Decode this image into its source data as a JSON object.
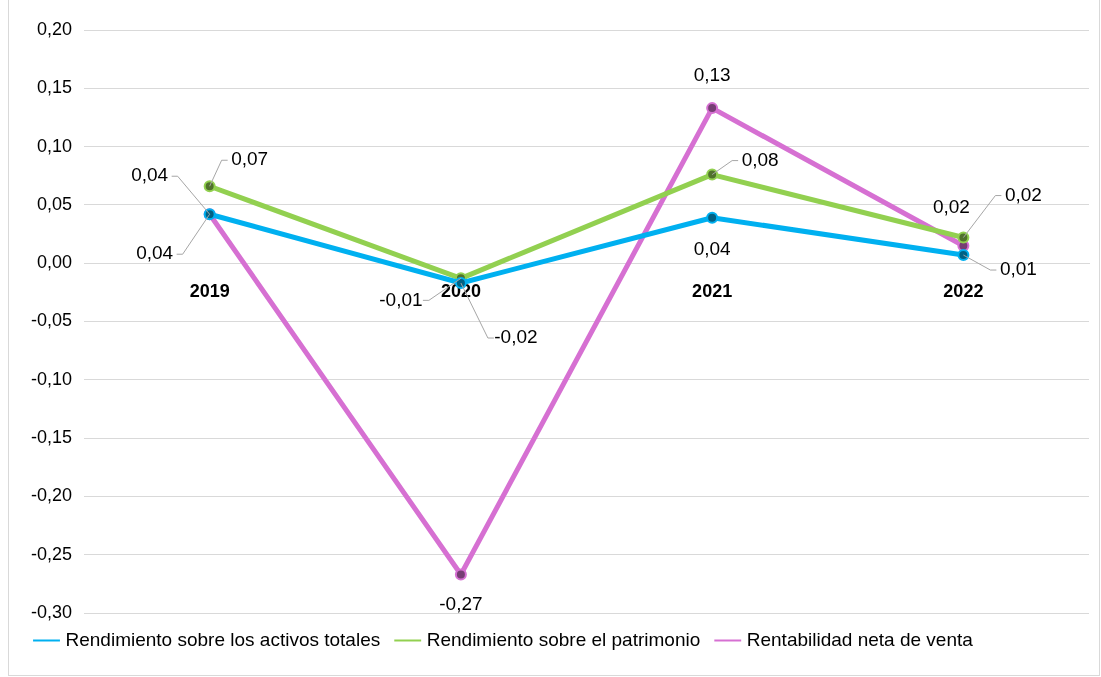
{
  "chart_data": {
    "type": "line",
    "categories": [
      "2019",
      "2020",
      "2021",
      "2022"
    ],
    "series": [
      {
        "name": "Rendimiento sobre los activos totales",
        "color": "#00b0f0",
        "values": [
          0.042,
          -0.017,
          0.039,
          0.007
        ],
        "value_labels": [
          "0,04",
          "-0,02",
          "0,04",
          "0,01"
        ]
      },
      {
        "name": "Rendimiento sobre el patrimonio",
        "color": "#92d050",
        "values": [
          0.066,
          -0.013,
          0.076,
          0.022
        ],
        "value_labels": [
          "0,07",
          "-0,01",
          "0,08",
          "0,02"
        ]
      },
      {
        "name": "Rentabilidad neta de venta",
        "color": "#d670d2",
        "values": [
          0.042,
          -0.267,
          0.133,
          0.015
        ],
        "value_labels": [
          "0,04",
          "-0,27",
          "0,13",
          "0,02"
        ]
      }
    ],
    "ylim": [
      -0.3,
      0.2
    ],
    "yticks": [
      {
        "value": -0.3,
        "label": "-0,30"
      },
      {
        "value": -0.25,
        "label": "-0,25"
      },
      {
        "value": -0.2,
        "label": "-0,20"
      },
      {
        "value": -0.15,
        "label": "-0,15"
      },
      {
        "value": -0.1,
        "label": "-0,10"
      },
      {
        "value": -0.05,
        "label": "-0,05"
      },
      {
        "value": 0,
        "label": "0,00"
      },
      {
        "value": 0.05,
        "label": "0,05"
      },
      {
        "value": 0.1,
        "label": "0,10"
      },
      {
        "value": 0.15,
        "label": "0,15"
      },
      {
        "value": 0.2,
        "label": "0,20"
      }
    ],
    "grid": "y",
    "legend": "bottom",
    "marker": "circle"
  }
}
